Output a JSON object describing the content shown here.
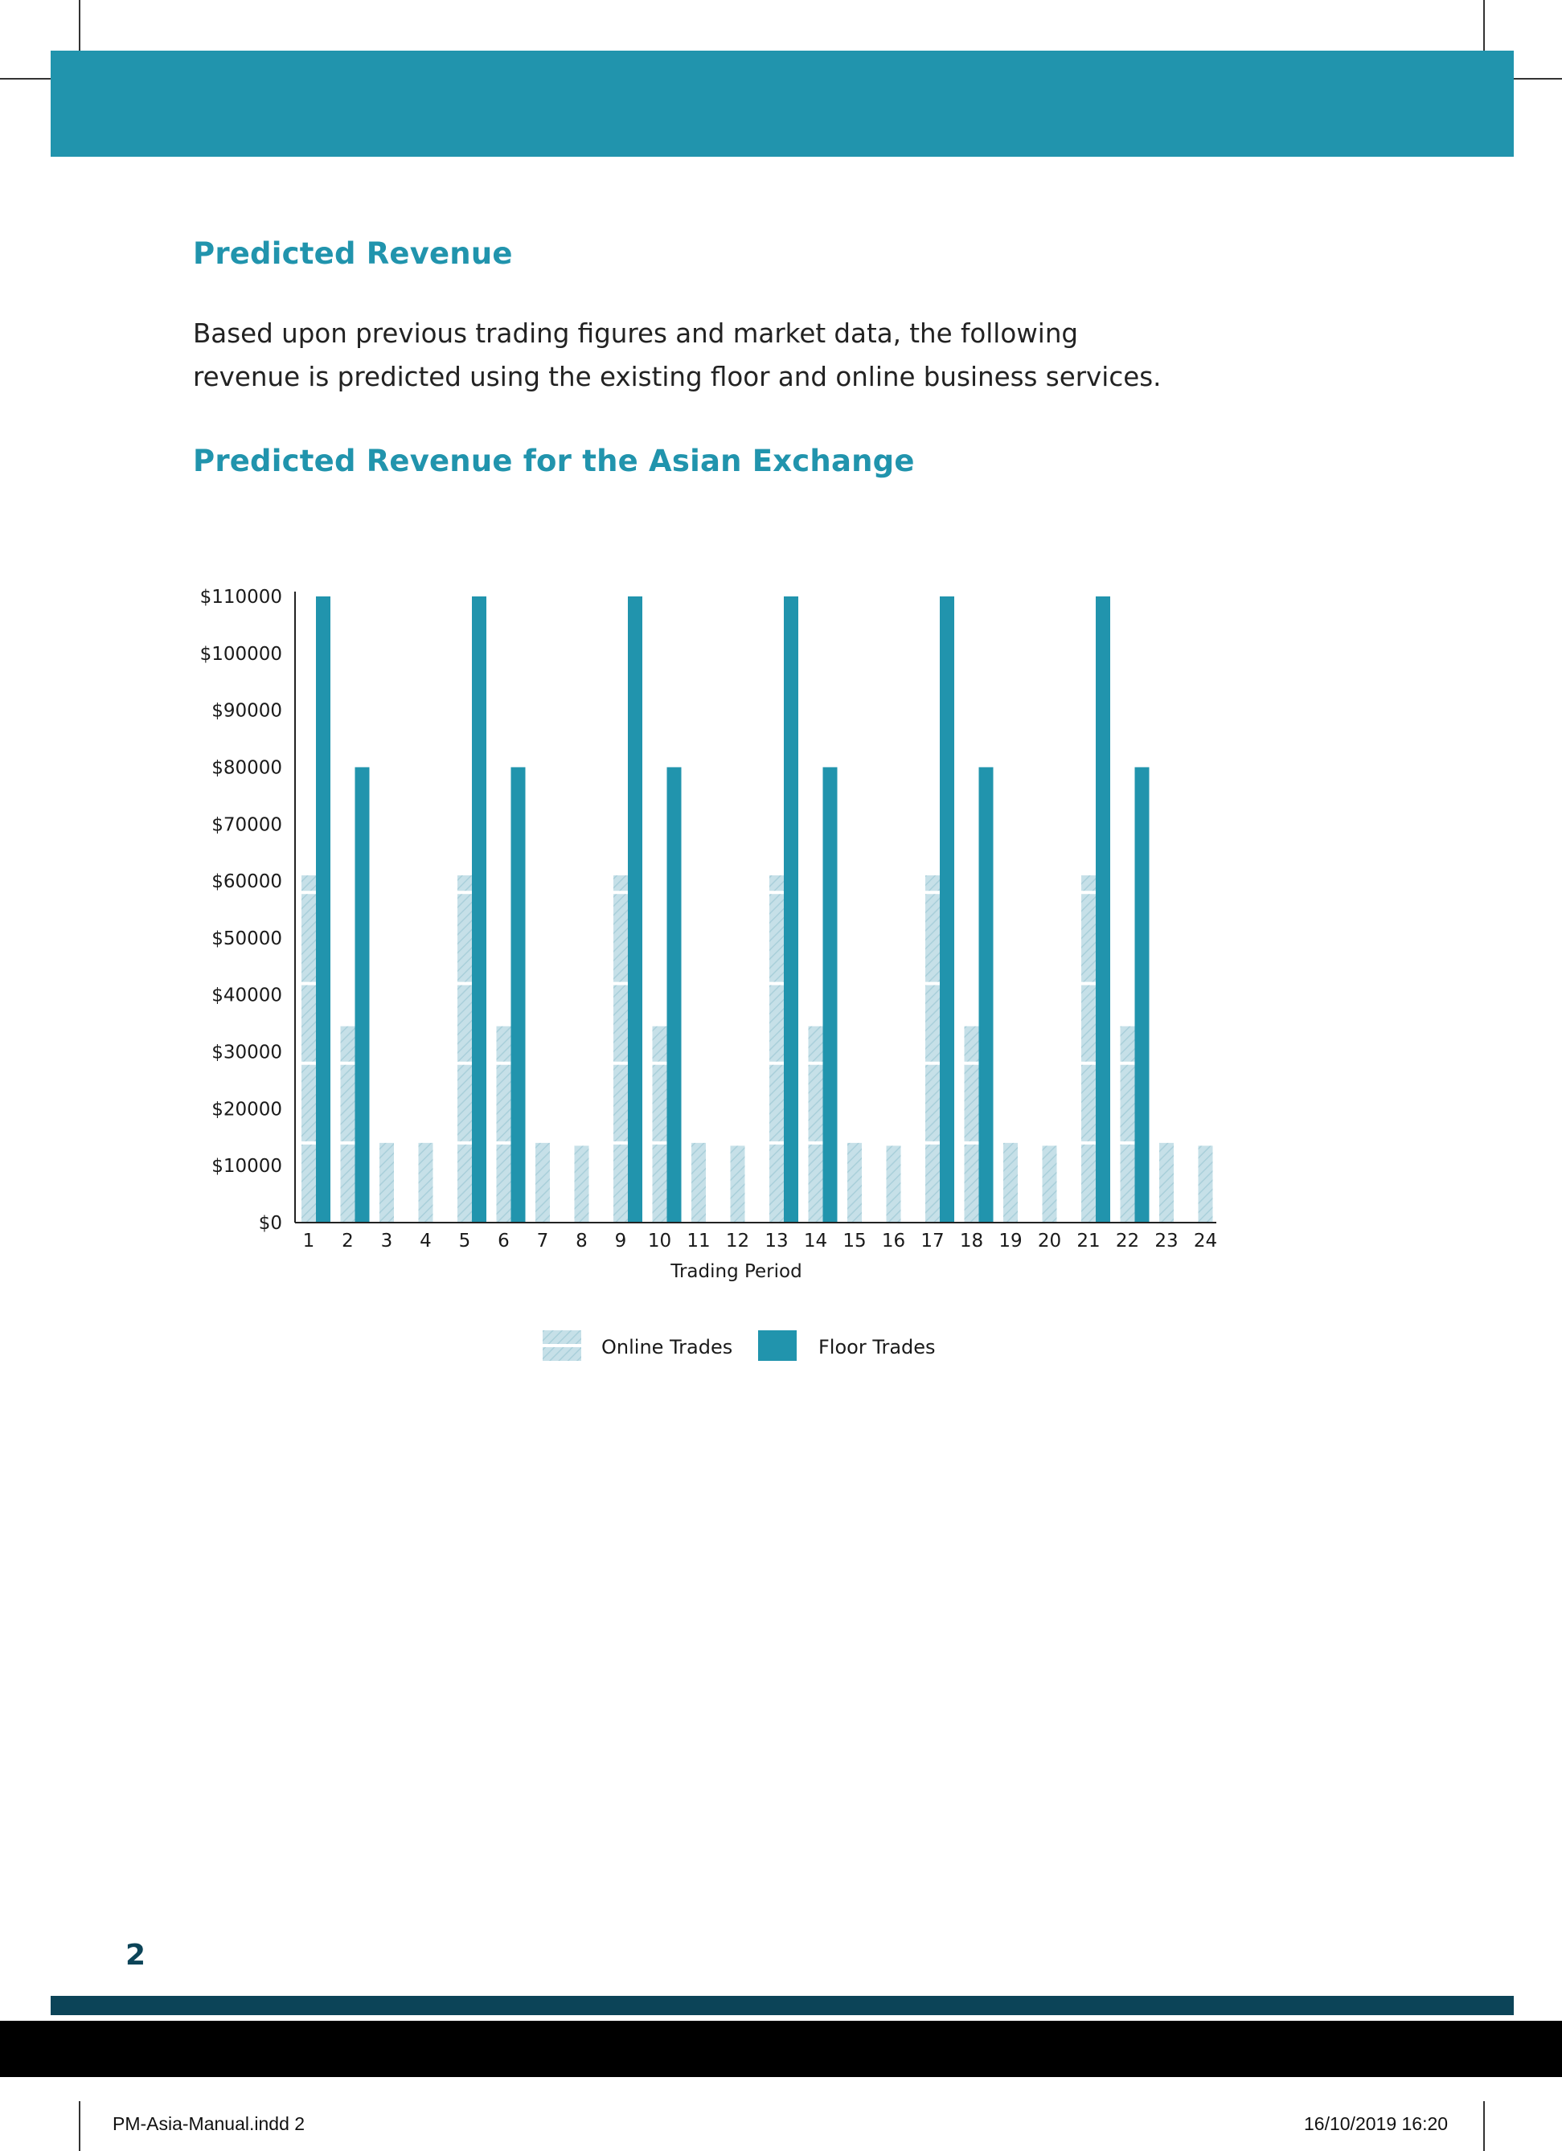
{
  "section_title": "Predicted Revenue",
  "intro_lines": [
    "Based upon previous trading figures and market data, the following",
    "revenue is predicted using the existing floor and online business services."
  ],
  "chart_heading": "Predicted Revenue for the Asian Exchange",
  "chart_data": {
    "type": "bar",
    "title": "Predicted Revenue for the Asian Exchange",
    "xlabel": "Trading Period",
    "ylabel": "",
    "ylim": [
      0,
      110000
    ],
    "yticks": [
      "$0",
      "$10000",
      "$20000",
      "$30000",
      "$40000",
      "$50000",
      "$60000",
      "$70000",
      "$80000",
      "$90000",
      "$100000",
      "$110000"
    ],
    "categories": [
      "1",
      "2",
      "3",
      "4",
      "5",
      "6",
      "7",
      "8",
      "9",
      "10",
      "11",
      "12",
      "13",
      "14",
      "15",
      "16",
      "17",
      "18",
      "19",
      "20",
      "21",
      "22",
      "23",
      "24"
    ],
    "series": [
      {
        "name": "Online Trades",
        "color": "#b9d9e2",
        "pattern": "hatched",
        "values": [
          61000,
          34500,
          14000,
          14000,
          61000,
          34500,
          14000,
          13500,
          61000,
          34500,
          14000,
          13500,
          61000,
          34500,
          14000,
          13500,
          61000,
          34500,
          14000,
          13500,
          61000,
          34500,
          14000,
          13500
        ]
      },
      {
        "name": "Floor Trades",
        "color": "#2194ad",
        "values": [
          110000,
          80000,
          0,
          0,
          110000,
          80000,
          0,
          0,
          110000,
          80000,
          0,
          0,
          110000,
          80000,
          0,
          0,
          110000,
          80000,
          0,
          0,
          110000,
          80000,
          0,
          0
        ]
      }
    ],
    "grid": false,
    "legend": "bottom-center"
  },
  "page_number": "2",
  "slug": {
    "file": "PM-Asia-Manual.indd   2",
    "datetime": "16/10/2019   16:20"
  },
  "colors": {
    "accent": "#2194ad",
    "dark": "#0c4458",
    "online": "#b9d9e2"
  }
}
